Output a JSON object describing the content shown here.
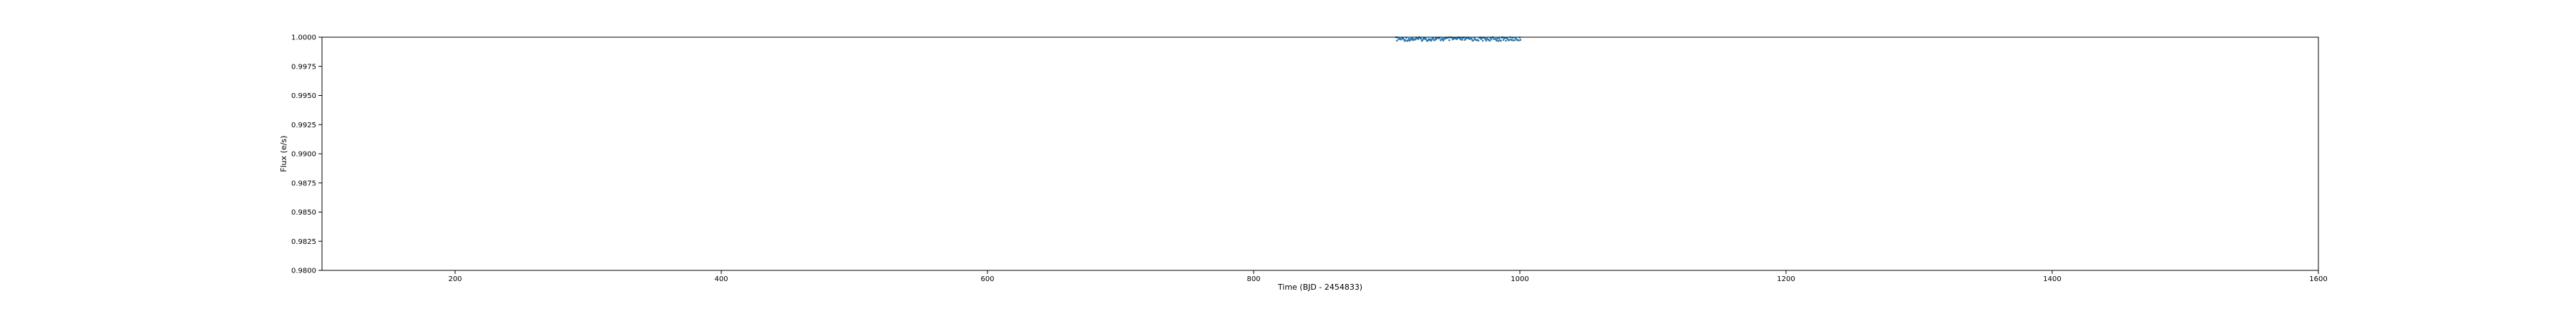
{
  "chart_data": {
    "type": "scatter",
    "title": "",
    "xlabel": "Time (BJD - 2454833)",
    "ylabel": "Flux (e/s)",
    "xlim": [
      100,
      1600
    ],
    "ylim": [
      0.98,
      1.0
    ],
    "xticks": [
      200,
      400,
      600,
      800,
      1000,
      1200,
      1400,
      1600
    ],
    "yticks": [
      0.98,
      0.9825,
      0.985,
      0.9875,
      0.99,
      0.9925,
      0.995,
      0.9975,
      1.0
    ],
    "xtick_labels": [
      "200",
      "400",
      "600",
      "800",
      "1000",
      "1200",
      "1400",
      "1600"
    ],
    "ytick_labels": [
      "0.9800",
      "0.9825",
      "0.9850",
      "0.9875",
      "0.9900",
      "0.9925",
      "0.9950",
      "0.9975",
      "1.0000"
    ],
    "grid": false,
    "legend": "none",
    "series": [
      {
        "color": "#1f77b4",
        "x_range": [
          907,
          1001
        ],
        "y_min": 0.99968,
        "y_max": 1.0
      }
    ]
  }
}
